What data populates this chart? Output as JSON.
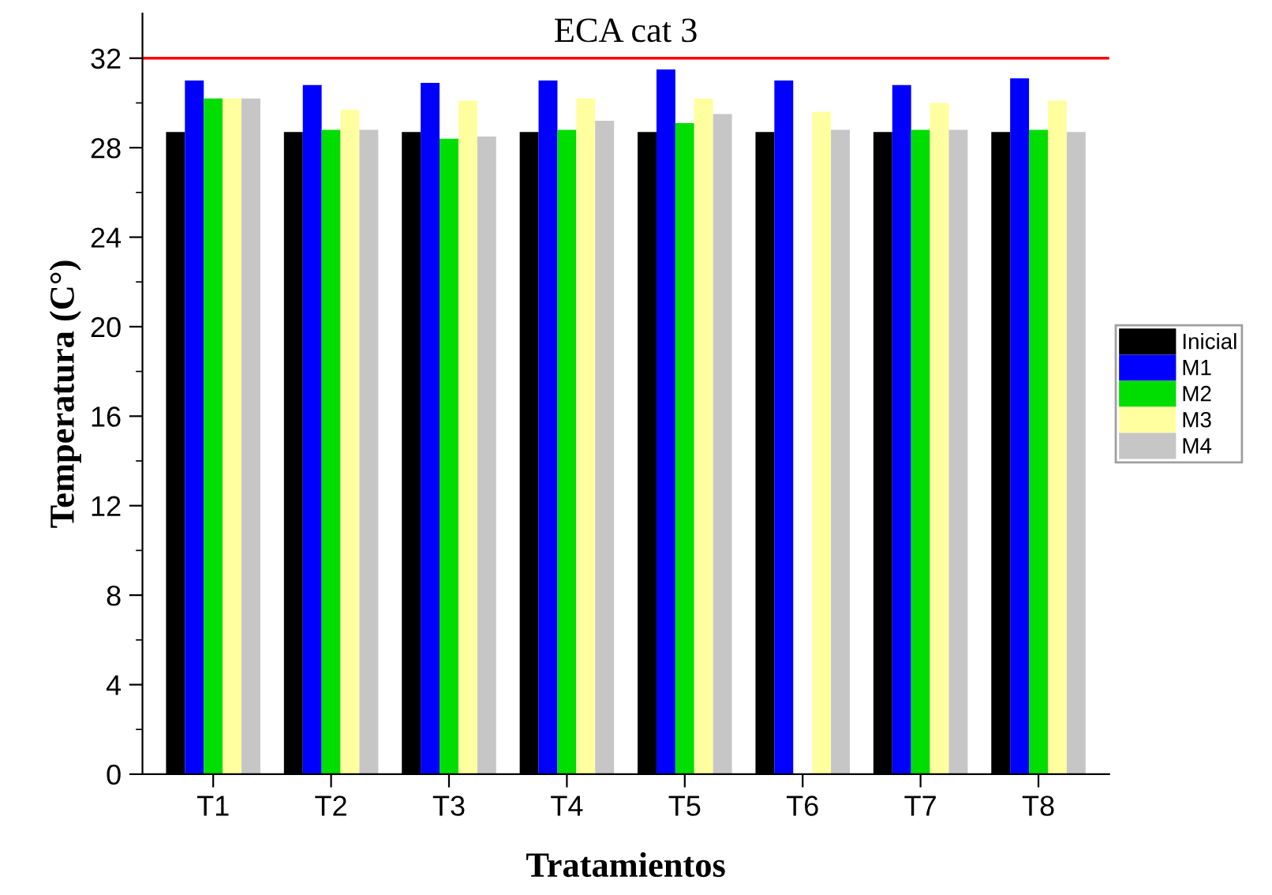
{
  "chart_data": {
    "type": "bar",
    "xlabel": "Tratamientos",
    "ylabel": "Temperatura (C°)",
    "categories": [
      "T1",
      "T2",
      "T3",
      "T4",
      "T5",
      "T6",
      "T7",
      "T8"
    ],
    "series": [
      {
        "name": "Inicial",
        "color": "#000000",
        "values": [
          28.7,
          28.7,
          28.7,
          28.7,
          28.7,
          28.7,
          28.7,
          28.7
        ]
      },
      {
        "name": "M1",
        "color": "#0000ff",
        "values": [
          31.0,
          30.8,
          30.9,
          31.0,
          31.5,
          31.0,
          30.8,
          31.1
        ]
      },
      {
        "name": "M2",
        "color": "#00dd00",
        "values": [
          30.2,
          28.8,
          28.4,
          28.8,
          29.1,
          null,
          28.8,
          28.8
        ]
      },
      {
        "name": "M3",
        "color": "#ffffa0",
        "values": [
          30.2,
          29.7,
          30.1,
          30.2,
          30.2,
          29.6,
          30.0,
          30.1
        ]
      },
      {
        "name": "M4",
        "color": "#c6c6c6",
        "values": [
          30.2,
          28.8,
          28.5,
          29.2,
          29.5,
          28.8,
          28.8,
          28.7
        ]
      }
    ],
    "ylim": [
      0,
      34
    ],
    "yticks": [
      0,
      4,
      8,
      12,
      16,
      20,
      24,
      28,
      32
    ],
    "ref_lines": [
      {
        "axis": "y",
        "value": 32,
        "label": "ECA cat 3",
        "color": "#ff0000"
      }
    ],
    "grid": false,
    "legend": "right"
  }
}
